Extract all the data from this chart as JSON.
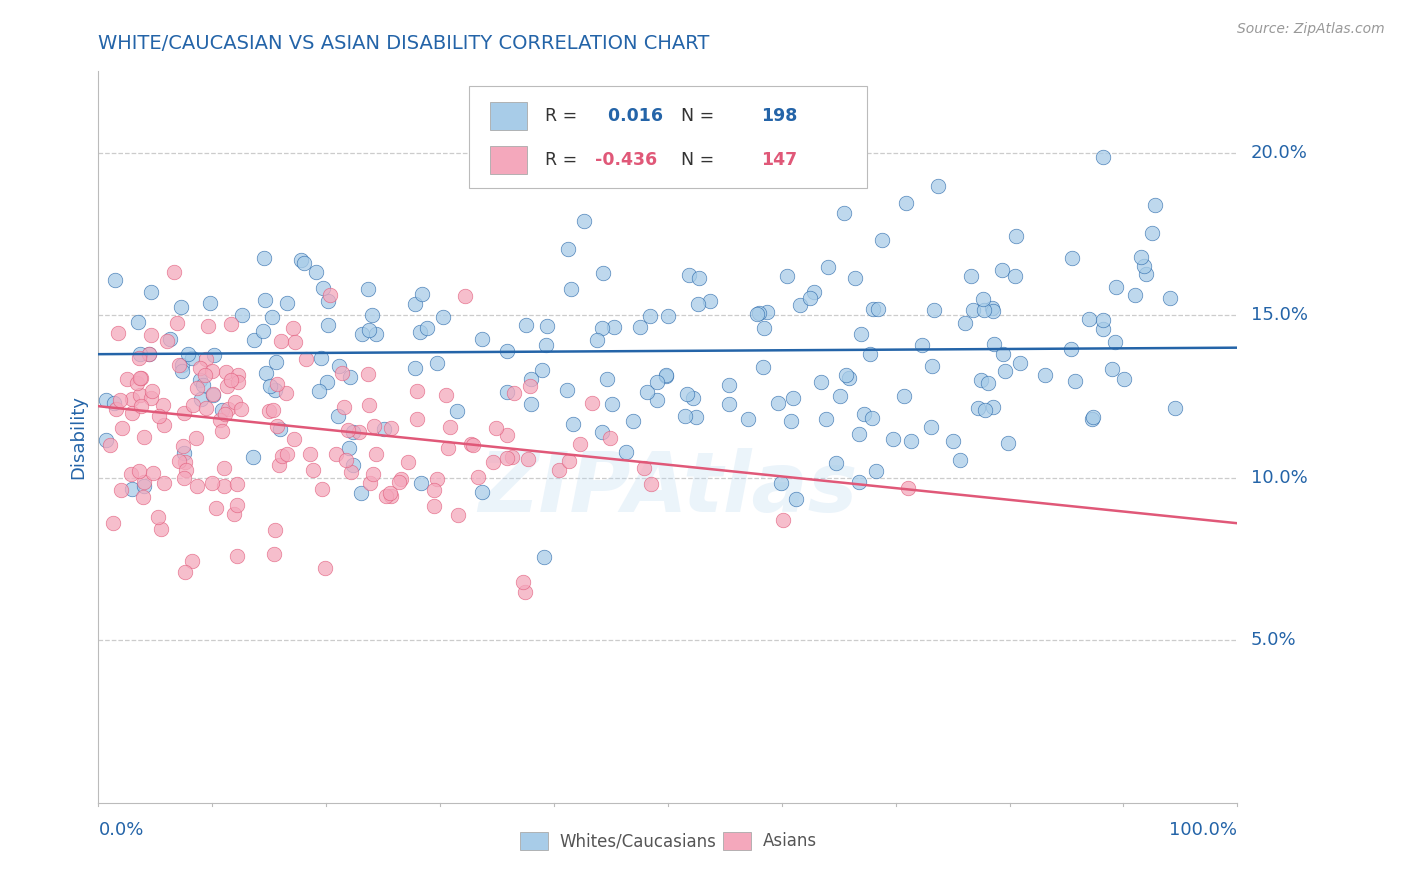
{
  "title": "WHITE/CAUCASIAN VS ASIAN DISABILITY CORRELATION CHART",
  "source_text": "Source: ZipAtlas.com",
  "ylabel": "Disability",
  "yticks": [
    0.05,
    0.1,
    0.15,
    0.2
  ],
  "ytick_labels": [
    "5.0%",
    "10.0%",
    "15.0%",
    "20.0%"
  ],
  "xlim": [
    0.0,
    1.0
  ],
  "ylim": [
    0.0,
    0.225
  ],
  "blue_R": 0.016,
  "blue_N": 198,
  "pink_R": -0.436,
  "pink_N": 147,
  "blue_scatter_color": "#A8CCE8",
  "blue_line_color": "#2464A8",
  "pink_scatter_color": "#F4A8BC",
  "pink_line_color": "#E05878",
  "title_color": "#2464A8",
  "axis_label_color": "#2464A8",
  "tick_label_color": "#2464A8",
  "grid_color": "#CCCCCC",
  "legend_blue_label": "Whites/Caucasians",
  "legend_pink_label": "Asians",
  "watermark_text": "ZIPAtlas",
  "background_color": "#FFFFFF",
  "source_color": "#999999",
  "blue_line_y0": 0.138,
  "blue_line_y1": 0.14,
  "pink_line_y0": 0.122,
  "pink_line_y1": 0.086
}
